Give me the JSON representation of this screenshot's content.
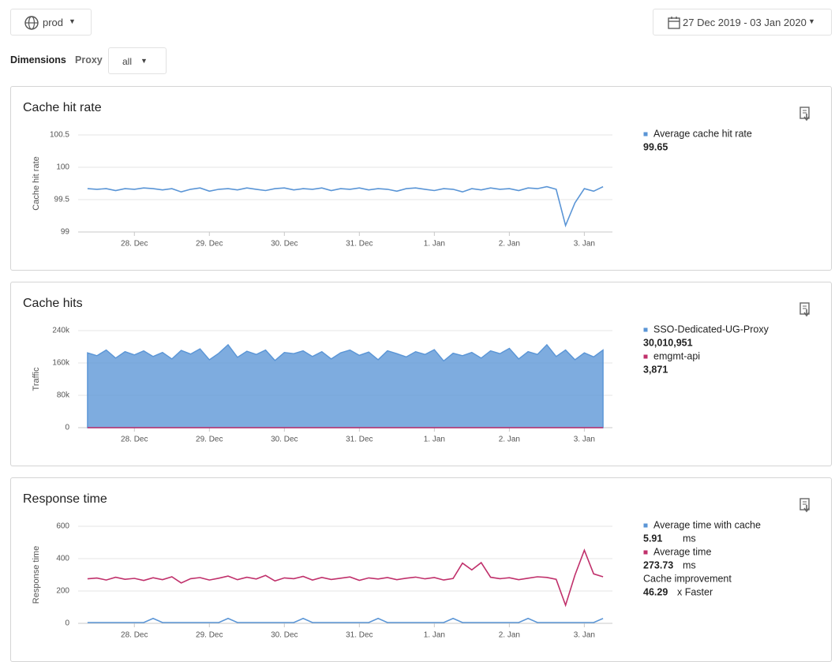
{
  "header": {
    "environment": "prod",
    "date_range": "27 Dec 2019 - 03 Jan 2020"
  },
  "filters": {
    "title": "Dimensions",
    "proxy_label": "Proxy",
    "proxy_value": "all"
  },
  "chart_data": [
    {
      "type": "line",
      "title": "Cache hit rate",
      "ylabel": "Cache hit rate",
      "ylim": [
        99,
        100.5
      ],
      "yticks": [
        99,
        99.5,
        100,
        100.5
      ],
      "grid": true,
      "xlim": [
        -1,
        56
      ],
      "xticks": [
        {
          "value": 5,
          "label": "28. Dec"
        },
        {
          "value": 13,
          "label": "29. Dec"
        },
        {
          "value": 21,
          "label": "30. Dec"
        },
        {
          "value": 29,
          "label": "31. Dec"
        },
        {
          "value": 37,
          "label": "1. Jan"
        },
        {
          "value": 45,
          "label": "2. Jan"
        },
        {
          "value": 53,
          "label": "3. Jan"
        }
      ],
      "series": [
        {
          "name": "Average cache hit rate",
          "color": "#5a95d6",
          "total": "99.65",
          "values": [
            99.67,
            99.66,
            99.67,
            99.64,
            99.67,
            99.66,
            99.68,
            99.67,
            99.65,
            99.67,
            99.62,
            99.66,
            99.68,
            99.63,
            99.66,
            99.67,
            99.65,
            99.68,
            99.66,
            99.64,
            99.67,
            99.68,
            99.65,
            99.67,
            99.66,
            99.68,
            99.64,
            99.67,
            99.66,
            99.68,
            99.65,
            99.67,
            99.66,
            99.63,
            99.67,
            99.68,
            99.66,
            99.64,
            99.67,
            99.66,
            99.62,
            99.67,
            99.65,
            99.68,
            99.66,
            99.67,
            99.64,
            99.68,
            99.67,
            99.7,
            99.66,
            99.1,
            99.45,
            99.67,
            99.63,
            99.7
          ]
        }
      ]
    },
    {
      "type": "area",
      "title": "Cache hits",
      "ylabel": "Traffic",
      "ylim": [
        0,
        240000
      ],
      "yticks": [
        0,
        {
          "value": 80000,
          "label": "80k"
        },
        {
          "value": 160000,
          "label": "160k"
        },
        {
          "value": 240000,
          "label": "240k"
        }
      ],
      "grid": true,
      "xlim": [
        -1,
        56
      ],
      "xticks": [
        {
          "value": 5,
          "label": "28. Dec"
        },
        {
          "value": 13,
          "label": "29. Dec"
        },
        {
          "value": 21,
          "label": "30. Dec"
        },
        {
          "value": 29,
          "label": "31. Dec"
        },
        {
          "value": 37,
          "label": "1. Jan"
        },
        {
          "value": 45,
          "label": "2. Jan"
        },
        {
          "value": 53,
          "label": "3. Jan"
        }
      ],
      "series": [
        {
          "name": "SSO-Dedicated-UG-Proxy",
          "color": "#5a95d6",
          "total": "30,010,951",
          "values": [
            185000,
            178000,
            192000,
            172000,
            188000,
            180000,
            190000,
            176000,
            186000,
            170000,
            191000,
            182000,
            195000,
            168000,
            184000,
            205000,
            174000,
            189000,
            181000,
            192000,
            166000,
            186000,
            183000,
            190000,
            176000,
            188000,
            170000,
            185000,
            192000,
            179000,
            187000,
            168000,
            190000,
            183000,
            175000,
            188000,
            181000,
            193000,
            165000,
            184000,
            178000,
            186000,
            172000,
            190000,
            183000,
            196000,
            170000,
            188000,
            181000,
            205000,
            176000,
            192000,
            168000,
            185000,
            175000,
            192000
          ]
        },
        {
          "name": "emgmt-api",
          "color": "#c0306b",
          "total": "3,871",
          "values": [
            23,
            21,
            25,
            22,
            24,
            23,
            20,
            26,
            22,
            23,
            24,
            21,
            25,
            23,
            22,
            24,
            23,
            21,
            26,
            22,
            23,
            24,
            22,
            25,
            21,
            23,
            24,
            22,
            23,
            25,
            21,
            24,
            22,
            23,
            26,
            22,
            24,
            23,
            21,
            25,
            22,
            23,
            24,
            22,
            23,
            25,
            21,
            24,
            23,
            22,
            24,
            23,
            21,
            25,
            22,
            23
          ]
        }
      ]
    },
    {
      "type": "line",
      "title": "Response time",
      "ylabel": "Response time",
      "ylim": [
        0,
        600
      ],
      "yticks": [
        0,
        200,
        400,
        600
      ],
      "grid": true,
      "xlim": [
        -1,
        56
      ],
      "xticks": [
        {
          "value": 5,
          "label": "28. Dec"
        },
        {
          "value": 13,
          "label": "29. Dec"
        },
        {
          "value": 21,
          "label": "30. Dec"
        },
        {
          "value": 29,
          "label": "31. Dec"
        },
        {
          "value": 37,
          "label": "1. Jan"
        },
        {
          "value": 45,
          "label": "2. Jan"
        },
        {
          "value": 53,
          "label": "3. Jan"
        }
      ],
      "series": [
        {
          "name": "Average time with cache",
          "color": "#5a95d6",
          "total": "5.91",
          "unit": "ms",
          "values": [
            5,
            5,
            5,
            5,
            5,
            5,
            5,
            30,
            5,
            5,
            5,
            5,
            5,
            5,
            5,
            30,
            5,
            5,
            5,
            5,
            5,
            5,
            5,
            30,
            5,
            5,
            5,
            5,
            5,
            5,
            5,
            30,
            5,
            5,
            5,
            5,
            5,
            5,
            5,
            30,
            5,
            5,
            5,
            5,
            5,
            5,
            5,
            30,
            5,
            5,
            5,
            5,
            5,
            5,
            5,
            30
          ]
        },
        {
          "name": "Average time",
          "color": "#c0306b",
          "total": "273.73",
          "unit": "ms",
          "values": [
            275,
            280,
            268,
            285,
            272,
            278,
            265,
            282,
            270,
            288,
            250,
            276,
            283,
            268,
            279,
            292,
            270,
            285,
            274,
            296,
            262,
            281,
            276,
            290,
            268,
            284,
            271,
            279,
            287,
            266,
            281,
            274,
            283,
            270,
            279,
            286,
            275,
            283,
            268,
            277,
            372,
            330,
            375,
            285,
            276,
            282,
            270,
            279,
            288,
            284,
            272,
            112,
            298,
            452,
            306,
            288
          ]
        }
      ],
      "note": {
        "label": "Cache improvement",
        "value": "46.29",
        "unit": "x Faster"
      }
    }
  ]
}
